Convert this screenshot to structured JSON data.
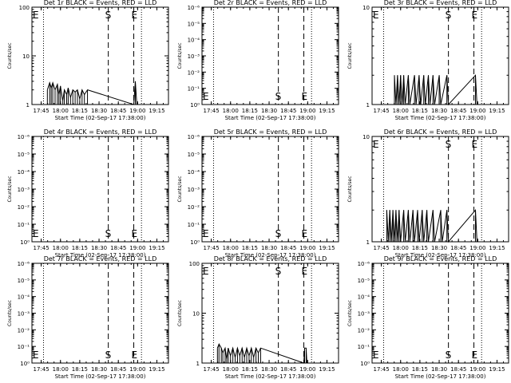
{
  "figure": {
    "xlabel": "Start Time (02-Sep-17 17:38:00)",
    "ylabel": "Counts/sec",
    "x_tick_labels": [
      "17:45",
      "18:00",
      "18:15",
      "18:30",
      "18:45",
      "19:00",
      "19:15"
    ],
    "colors": {
      "events": "#000000",
      "lld": "#ff0000",
      "background": "#ffffff"
    }
  },
  "chart_data": [
    {
      "type": "line",
      "title": "Det 1r BLACK = Events, RED = LLD",
      "xlim": [
        17.63,
        19.4
      ],
      "ylim": [
        1,
        100
      ],
      "yscale": "log",
      "y_tick_labels": [
        "1",
        "10",
        "100"
      ],
      "vlines_dotted": [
        17.78,
        19.05
      ],
      "vline_S": 18.62,
      "vline_E": 18.95,
      "labels": {
        "s": "S",
        "e": "E",
        "left_e": "E"
      },
      "series": [
        {
          "values": [
            [
              17.83,
              2.0
            ],
            [
              17.86,
              2.8
            ],
            [
              17.88,
              2.2
            ],
            [
              17.9,
              2.8
            ],
            [
              17.93,
              2.0
            ],
            [
              17.96,
              2.6
            ],
            [
              17.98,
              1.6
            ],
            [
              18.0,
              2.4
            ],
            [
              18.03,
              1.2
            ],
            [
              18.05,
              2.0
            ],
            [
              18.08,
              1.6
            ],
            [
              18.1,
              2.2
            ],
            [
              18.13,
              1.4
            ],
            [
              18.16,
              2.0
            ],
            [
              18.19,
              1.8
            ],
            [
              18.22,
              2.0
            ],
            [
              18.25,
              1.3
            ],
            [
              18.28,
              2.0
            ],
            [
              18.31,
              1.6
            ],
            [
              18.35,
              2.0
            ],
            [
              18.95,
              1.0
            ],
            [
              18.97,
              3.0
            ],
            [
              18.99,
              1.0
            ]
          ]
        }
      ]
    },
    {
      "type": "line",
      "title": "Det 2r BLACK = Events, RED = LLD",
      "xlim": [
        17.63,
        19.4
      ],
      "ylim": [
        1,
        1000000
      ],
      "yscale": "log",
      "y_tick_labels": [
        "10⁰",
        "10⁻¹",
        "10⁻²",
        "10⁻³",
        "10⁻⁴",
        "10⁻⁵",
        "10⁻⁶"
      ],
      "vlines_dotted": [
        17.78,
        19.05
      ],
      "vline_S": 18.62,
      "vline_E": 18.95,
      "labels": {
        "s": "S",
        "e": "E",
        "left_e": "E"
      },
      "series": []
    },
    {
      "type": "line",
      "title": "Det 3r BLACK = Events, RED = LLD",
      "xlim": [
        17.63,
        19.4
      ],
      "ylim": [
        1,
        10
      ],
      "yscale": "log",
      "y_tick_labels": [
        "1",
        "10"
      ],
      "vlines_dotted": [
        17.78,
        19.05
      ],
      "vline_S": 18.62,
      "vline_E": 18.95,
      "labels": {
        "s": "S",
        "e": "E",
        "left_e": "E"
      },
      "series": [
        {
          "values": [
            [
              17.92,
              2.0
            ],
            [
              17.94,
              1.0
            ],
            [
              17.96,
              2.0
            ],
            [
              17.98,
              1.0
            ],
            [
              18.0,
              2.0
            ],
            [
              18.02,
              1.0
            ],
            [
              18.04,
              2.0
            ],
            [
              18.06,
              1.0
            ],
            [
              18.1,
              2.0
            ],
            [
              18.12,
              1.0
            ],
            [
              18.18,
              2.0
            ],
            [
              18.2,
              1.0
            ],
            [
              18.24,
              2.0
            ],
            [
              18.26,
              1.0
            ],
            [
              18.3,
              2.0
            ],
            [
              18.32,
              1.0
            ],
            [
              18.36,
              2.0
            ],
            [
              18.38,
              1.0
            ],
            [
              18.42,
              2.0
            ],
            [
              18.44,
              1.0
            ],
            [
              18.5,
              2.0
            ],
            [
              18.52,
              1.0
            ],
            [
              18.6,
              2.0
            ],
            [
              18.62,
              1.0
            ],
            [
              18.97,
              2.0
            ],
            [
              18.99,
              1.0
            ]
          ]
        }
      ]
    },
    {
      "type": "line",
      "title": "Det 4r BLACK = Events, RED = LLD",
      "xlim": [
        17.63,
        19.4
      ],
      "ylim": [
        1,
        1000000
      ],
      "yscale": "log",
      "y_tick_labels": [
        "10⁰",
        "10⁻¹",
        "10⁻²",
        "10⁻³",
        "10⁻⁴",
        "10⁻⁵",
        "10⁻⁶"
      ],
      "vlines_dotted": [
        17.78,
        19.05
      ],
      "vline_S": 18.62,
      "vline_E": 18.95,
      "labels": {
        "s": "S",
        "e": "E",
        "left_e": "E"
      },
      "series": []
    },
    {
      "type": "line",
      "title": "Det 5r BLACK = Events, RED = LLD",
      "xlim": [
        17.63,
        19.4
      ],
      "ylim": [
        1,
        1000000
      ],
      "yscale": "log",
      "y_tick_labels": [
        "10⁰",
        "10⁻¹",
        "10⁻²",
        "10⁻³",
        "10⁻⁴",
        "10⁻⁵",
        "10⁻⁶"
      ],
      "vlines_dotted": [
        17.78,
        19.05
      ],
      "vline_S": 18.62,
      "vline_E": 18.95,
      "labels": {
        "s": "S",
        "e": "E",
        "left_e": "E"
      },
      "series": []
    },
    {
      "type": "line",
      "title": "Det 6r BLACK = Events, RED = LLD",
      "xlim": [
        17.63,
        19.4
      ],
      "ylim": [
        1,
        10
      ],
      "yscale": "log",
      "y_tick_labels": [
        "1",
        "10"
      ],
      "vlines_dotted": [
        17.78,
        19.05
      ],
      "vline_S": 18.62,
      "vline_E": 18.95,
      "labels": {
        "s": "S",
        "e": "E",
        "left_e": "E"
      },
      "series": [
        {
          "values": [
            [
              17.82,
              2.0
            ],
            [
              17.84,
              1.0
            ],
            [
              17.86,
              2.0
            ],
            [
              17.88,
              1.0
            ],
            [
              17.9,
              2.0
            ],
            [
              17.92,
              1.0
            ],
            [
              17.94,
              2.0
            ],
            [
              17.96,
              1.0
            ],
            [
              17.98,
              2.0
            ],
            [
              18.0,
              1.0
            ],
            [
              18.04,
              2.0
            ],
            [
              18.06,
              1.0
            ],
            [
              18.1,
              2.0
            ],
            [
              18.12,
              1.0
            ],
            [
              18.16,
              2.0
            ],
            [
              18.18,
              1.0
            ],
            [
              18.22,
              2.0
            ],
            [
              18.24,
              1.0
            ],
            [
              18.28,
              2.0
            ],
            [
              18.3,
              1.0
            ],
            [
              18.34,
              2.0
            ],
            [
              18.36,
              1.0
            ],
            [
              18.42,
              2.0
            ],
            [
              18.44,
              1.0
            ],
            [
              18.52,
              2.0
            ],
            [
              18.54,
              1.0
            ],
            [
              18.6,
              2.0
            ],
            [
              18.62,
              1.0
            ],
            [
              18.97,
              2.0
            ],
            [
              18.99,
              1.0
            ]
          ]
        }
      ]
    },
    {
      "type": "line",
      "title": "Det 7r BLACK = Events, RED = LLD",
      "xlim": [
        17.63,
        19.4
      ],
      "ylim": [
        1,
        1000000
      ],
      "yscale": "log",
      "y_tick_labels": [
        "10⁰",
        "10⁻¹",
        "10⁻²",
        "10⁻³",
        "10⁻⁴",
        "10⁻⁵",
        "10⁻⁶"
      ],
      "vlines_dotted": [
        17.78,
        19.05
      ],
      "vline_S": 18.62,
      "vline_E": 18.95,
      "labels": {
        "s": "S",
        "e": "E",
        "left_e": "E"
      },
      "series": []
    },
    {
      "type": "line",
      "title": "Det 8r BLACK = Events, RED = LLD",
      "xlim": [
        17.63,
        19.4
      ],
      "ylim": [
        1,
        100
      ],
      "yscale": "log",
      "y_tick_labels": [
        "1",
        "10",
        "100"
      ],
      "vlines_dotted": [
        17.78,
        19.05
      ],
      "vline_S": 18.62,
      "vline_E": 18.95,
      "labels": {
        "s": "S",
        "e": "E",
        "left_e": "E"
      },
      "series": [
        {
          "values": [
            [
              17.83,
              2.0
            ],
            [
              17.85,
              2.4
            ],
            [
              17.88,
              2.0
            ],
            [
              17.9,
              1.6
            ],
            [
              17.93,
              2.0
            ],
            [
              17.95,
              1.2
            ],
            [
              17.97,
              2.0
            ],
            [
              18.0,
              1.4
            ],
            [
              18.03,
              2.0
            ],
            [
              18.06,
              1.3
            ],
            [
              18.09,
              2.0
            ],
            [
              18.12,
              1.4
            ],
            [
              18.15,
              2.0
            ],
            [
              18.18,
              1.3
            ],
            [
              18.21,
              2.0
            ],
            [
              18.24,
              1.4
            ],
            [
              18.27,
              2.0
            ],
            [
              18.3,
              1.3
            ],
            [
              18.33,
              2.0
            ],
            [
              18.36,
              1.6
            ],
            [
              18.39,
              2.0
            ],
            [
              18.95,
              1.0
            ],
            [
              18.96,
              2.0
            ],
            [
              18.98,
              2.0
            ],
            [
              18.99,
              1.0
            ]
          ]
        }
      ]
    },
    {
      "type": "line",
      "title": "Det 9r BLACK = Events, RED = LLD",
      "xlim": [
        17.63,
        19.4
      ],
      "ylim": [
        1,
        1000000
      ],
      "yscale": "log",
      "y_tick_labels": [
        "10⁰",
        "10⁻¹",
        "10⁻²",
        "10⁻³",
        "10⁻⁴",
        "10⁻⁵",
        "10⁻⁶"
      ],
      "vlines_dotted": [
        17.78,
        19.05
      ],
      "vline_S": 18.62,
      "vline_E": 18.95,
      "labels": {
        "s": "S",
        "e": "E",
        "left_e": "E"
      },
      "series": []
    }
  ]
}
